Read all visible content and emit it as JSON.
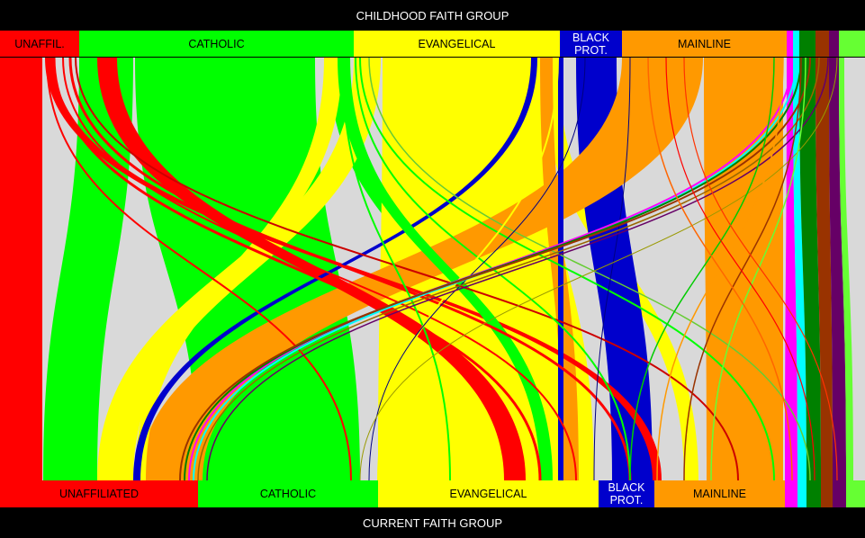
{
  "titles": {
    "top": "CHILDHOOD FAITH GROUP",
    "bottom": "CURRENT FAITH GROUP"
  },
  "top_groups": [
    {
      "label": "UNAFFIL.",
      "color": "#ff0000",
      "text_color": "#000000"
    },
    {
      "label": "CATHOLIC",
      "color": "#00ff00",
      "text_color": "#000000"
    },
    {
      "label": "EVANGELICAL",
      "color": "#ffff00",
      "text_color": "#000000"
    },
    {
      "label": "BLACK PROT.",
      "color": "#0000cc",
      "text_color": "#ffffff"
    },
    {
      "label": "MAINLINE",
      "color": "#ff9900",
      "text_color": "#000000"
    },
    {
      "label": "",
      "color": "#ff00ff",
      "text_color": "#000000"
    },
    {
      "label": "",
      "color": "#00ffff",
      "text_color": "#000000"
    },
    {
      "label": "",
      "color": "#008000",
      "text_color": "#000000"
    },
    {
      "label": "",
      "color": "#993300",
      "text_color": "#000000"
    },
    {
      "label": "",
      "color": "#660066",
      "text_color": "#000000"
    },
    {
      "label": "",
      "color": "#66ff33",
      "text_color": "#000000"
    }
  ],
  "bottom_groups": [
    {
      "label": "UNAFFILIATED",
      "color": "#ff0000",
      "text_color": "#000000"
    },
    {
      "label": "CATHOLIC",
      "color": "#00ff00",
      "text_color": "#000000"
    },
    {
      "label": "EVANGELICAL",
      "color": "#ffff00",
      "text_color": "#000000"
    },
    {
      "label": "BLACK PROT.",
      "color": "#0000cc",
      "text_color": "#ffffff"
    },
    {
      "label": "MAINLINE",
      "color": "#ff9900",
      "text_color": "#000000"
    },
    {
      "label": "",
      "color": "#ff00ff",
      "text_color": "#000000"
    },
    {
      "label": "",
      "color": "#00ffff",
      "text_color": "#000000"
    },
    {
      "label": "",
      "color": "#008000",
      "text_color": "#000000"
    },
    {
      "label": "",
      "color": "#993300",
      "text_color": "#000000"
    },
    {
      "label": "",
      "color": "#660066",
      "text_color": "#000000"
    },
    {
      "label": "",
      "color": "#66ff33",
      "text_color": "#000000"
    }
  ]
}
